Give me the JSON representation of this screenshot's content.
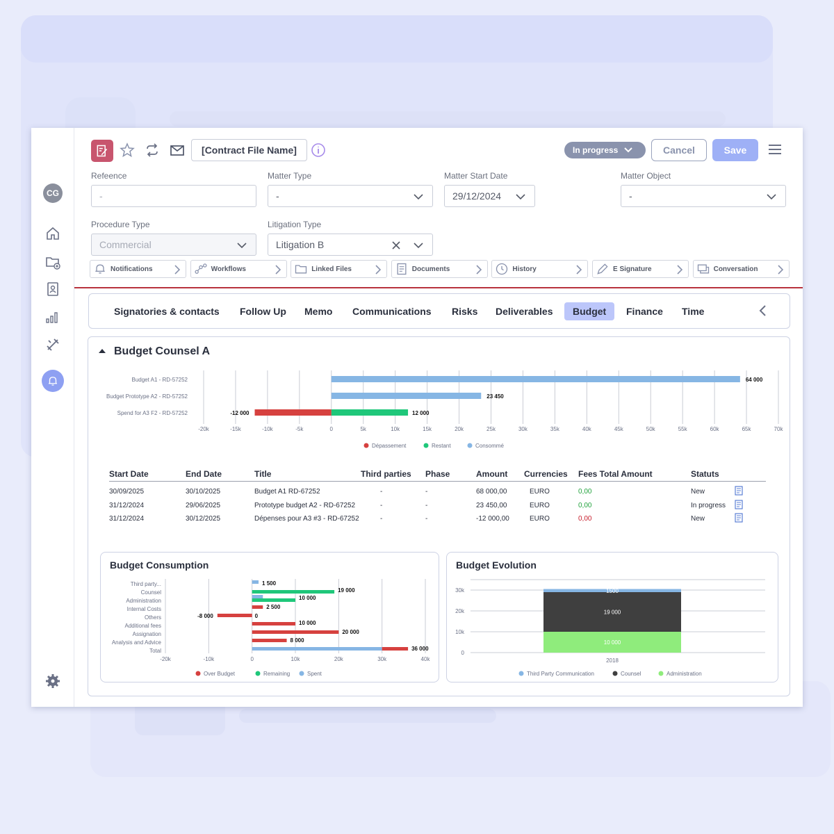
{
  "sidebar": {
    "avatar_initials": "CG"
  },
  "header": {
    "file_name": "[Contract File Name]",
    "status": "In progress",
    "cancel_label": "Cancel",
    "save_label": "Save"
  },
  "fields": {
    "reference": {
      "label": "Refeence",
      "value": "-"
    },
    "matter_type": {
      "label": "Matter Type",
      "value": "-"
    },
    "matter_start_date": {
      "label": "Matter Start Date",
      "value": "29/12/2024"
    },
    "matter_object": {
      "label": "Matter Object",
      "value": "-"
    },
    "procedure_type": {
      "label": "Procedure Type",
      "value": "Commercial"
    },
    "litigation_type": {
      "label": "Litigation Type",
      "value": "Litigation B"
    }
  },
  "toolbar": [
    {
      "label": "Notifications",
      "icon": "bell-icon"
    },
    {
      "label": "Workflows",
      "icon": "workflow-icon"
    },
    {
      "label": "Linked Files",
      "icon": "folder-icon"
    },
    {
      "label": "Documents",
      "icon": "document-icon"
    },
    {
      "label": "History",
      "icon": "clock-icon"
    },
    {
      "label": "E Signature",
      "icon": "pen-icon"
    },
    {
      "label": "Conversation",
      "icon": "chat-icon"
    }
  ],
  "tabs": [
    {
      "label": "Signatories & contacts"
    },
    {
      "label": "Follow Up"
    },
    {
      "label": "Memo"
    },
    {
      "label": "Communications"
    },
    {
      "label": "Risks"
    },
    {
      "label": "Deliverables"
    },
    {
      "label": "Budget",
      "active": true
    },
    {
      "label": "Finance"
    },
    {
      "label": "Time"
    }
  ],
  "budget": {
    "title": "Budget Counsel A",
    "table": {
      "headers": [
        "Start Date",
        "End Date",
        "Title",
        "Third parties",
        "Phase",
        "Amount",
        "Currencies",
        "Fees Total Amount",
        "Statuts"
      ],
      "rows": [
        [
          "30/09/2025",
          "30/10/2025",
          "Budget A1 RD-67252",
          "-",
          "-",
          "68 000,00",
          "EURO",
          "0,00",
          "New"
        ],
        [
          "31/12/2024",
          "29/06/2025",
          "Prototype budget A2 - RD-67252",
          "-",
          "-",
          "23 450,00",
          "EURO",
          "0,00",
          "In progress"
        ],
        [
          "31/12/2024",
          "30/12/2025",
          "Dépenses pour A3 #3 - RD-67252",
          "-",
          "-",
          "-12 000,00",
          "EURO",
          "0,00",
          "New"
        ]
      ]
    },
    "consumption_title": "Budget Consumption",
    "evolution_title": "Budget Evolution"
  },
  "colors": {
    "red": "#d6413f",
    "green": "#1fc77a",
    "blue": "#86b6e4",
    "dark": "#3f3f3f",
    "lightgreen": "#8fec7c"
  },
  "chart_data": [
    {
      "type": "bar",
      "orientation": "horizontal",
      "categories": [
        "Budget A1 - RD-57252",
        "Budget Prototype A2 - RD-57252",
        "Spend for A3 F2 - RD-57252"
      ],
      "series": [
        {
          "name": "Dépassement",
          "color": "#d6413f",
          "values": [
            0,
            0,
            -12000
          ]
        },
        {
          "name": "Restant",
          "color": "#1fc77a",
          "values": [
            0,
            0,
            12000
          ]
        },
        {
          "name": "Consommé",
          "color": "#86b6e4",
          "values": [
            64000,
            23450,
            0
          ]
        }
      ],
      "data_labels": [
        "64 000",
        "23 450",
        "-12 000",
        "12 000"
      ],
      "xlim": [
        -20000,
        70000
      ],
      "xticks": [
        "-20k",
        "-15k",
        "-10k",
        "-5k",
        "0",
        "5k",
        "10k",
        "15k",
        "20k",
        "25k",
        "30k",
        "35k",
        "40k",
        "45k",
        "50k",
        "55k",
        "60k",
        "65k",
        "70k"
      ],
      "legend": "bottom",
      "grid": true
    },
    {
      "type": "bar",
      "orientation": "horizontal",
      "title": "Budget Consumption",
      "categories": [
        "Third party...",
        "Counsel",
        "Administration",
        "Internal Costs",
        "Others",
        "Additional fees",
        "Assignation",
        "Analysis and Advice",
        "Total"
      ],
      "series": [
        {
          "name": "Over Budget",
          "color": "#d6413f",
          "values": [
            0,
            0,
            0,
            0,
            -8000,
            0,
            0,
            0,
            0
          ]
        },
        {
          "name": "Remaining",
          "color": "#1fc77a",
          "values": [
            0,
            19000,
            10000,
            0,
            0,
            0,
            0,
            0,
            0
          ]
        },
        {
          "name": "Spent",
          "color": "#86b6e4",
          "values": [
            1500,
            0,
            2500,
            0,
            0,
            0,
            0,
            0,
            30000
          ]
        },
        {
          "name": "Over Budget",
          "color": "#d6413f",
          "values": [
            0,
            0,
            0,
            2500,
            0,
            10000,
            20000,
            8000,
            6000
          ]
        }
      ],
      "data_labels": [
        "1 500",
        "19 000",
        "10 000",
        "2 500",
        "-8 000",
        "0",
        "10 000",
        "20 000",
        "8 000",
        "36 000"
      ],
      "xlim": [
        -20000,
        40000
      ],
      "xticks": [
        "-20k",
        "-10k",
        "0",
        "10k",
        "20k",
        "30k",
        "40k"
      ],
      "legend": "bottom",
      "grid": true
    },
    {
      "type": "bar",
      "stacked": true,
      "title": "Budget Evolution",
      "categories": [
        "2018"
      ],
      "series": [
        {
          "name": "Administration",
          "color": "#8fec7c",
          "values": [
            10000
          ]
        },
        {
          "name": "Counsel",
          "color": "#3f3f3f",
          "values": [
            19000
          ]
        },
        {
          "name": "Third Party Communication",
          "color": "#86b6e4",
          "values": [
            1500
          ]
        }
      ],
      "data_labels": [
        "10 000",
        "19 000",
        "1500"
      ],
      "ylim": [
        0,
        35000
      ],
      "yticks": [
        "0",
        "10k",
        "20k",
        "30k"
      ],
      "legend": "bottom",
      "grid": true
    }
  ]
}
